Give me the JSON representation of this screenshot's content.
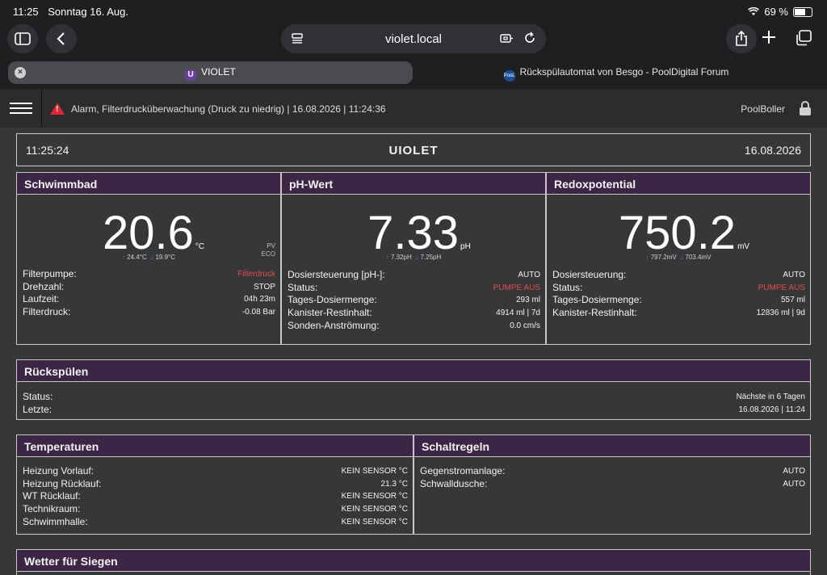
{
  "status_bar": {
    "time": "11:25",
    "date": "Sonntag 16. Aug.",
    "battery": "69 %",
    "battery_level": 0.69
  },
  "browser": {
    "url": "violet.local",
    "tabs": [
      {
        "label": "VIOLET",
        "favicon": "U"
      },
      {
        "label": "Rückspülautomat von Besgo - PoolDigital Forum",
        "favicon": "PooL"
      }
    ]
  },
  "header": {
    "alarm": "Alarm, Filterdrucküberwachung (Druck zu niedrig) | 16.08.2026 | 11:24:36",
    "alarm_symbol": "!",
    "user": "PoolBoller"
  },
  "clock": {
    "time": "11:25:24",
    "logo": "UIOLET",
    "date": "16.08.2026"
  },
  "schwimmbad": {
    "title": "Schwimmbad",
    "value": "20.6",
    "unit": "°C",
    "max": "24.4",
    "max_unit": "°C",
    "min": "19.9",
    "min_unit": "°C",
    "pv": "PV",
    "eco": "ECO",
    "rows": [
      {
        "label": "Filterpumpe:",
        "value": "Filterdruck"
      },
      {
        "label": "Drehzahl:",
        "value": "STOP"
      },
      {
        "label": "Laufzeit:",
        "value": "04h 23m"
      },
      {
        "label": "Filterdruck:",
        "value": "-0.08 Bar"
      }
    ]
  },
  "ph": {
    "title": "pH-Wert",
    "value": "7.33",
    "unit": "pH",
    "max": "7.32",
    "max_unit": "pH",
    "min": "7.25",
    "min_unit": "pH",
    "rows": [
      {
        "label": "Dosiersteuerung [pH-]:",
        "value": "AUTO"
      },
      {
        "label": "Status:",
        "value": "PUMPE AUS"
      },
      {
        "label": "Tages-Dosiermenge:",
        "value": "293 ml"
      },
      {
        "label": "Kanister-Restinhalt:",
        "value": "4914 ml | 7d"
      },
      {
        "label": "Sonden-Anströmung:",
        "value": "0.0 cm/s"
      }
    ]
  },
  "redox": {
    "title": "Redoxpotential",
    "value": "750.2",
    "unit": "mV",
    "max": "797.2",
    "max_unit": "mV",
    "min": "703.4",
    "min_unit": "mV",
    "rows": [
      {
        "label": "Dosiersteuerung:",
        "value": "AUTO"
      },
      {
        "label": "Status:",
        "value": "PUMPE AUS"
      },
      {
        "label": "Tages-Dosiermenge:",
        "value": "557 ml"
      },
      {
        "label": "Kanister-Restinhalt:",
        "value": "12836 ml | 9d"
      }
    ]
  },
  "rueckspuelen": {
    "title": "Rückspülen",
    "rows": [
      {
        "label": "Status:",
        "value": "Nächste in 6 Tagen"
      },
      {
        "label": "Letzte:",
        "value": "16.08.2026 | 11:24"
      }
    ]
  },
  "temperaturen": {
    "title": "Temperaturen",
    "rows": [
      {
        "label": "Heizung Vorlauf:",
        "value": "KEIN SENSOR °C"
      },
      {
        "label": "Heizung Rücklauf:",
        "value": "21.3 °C"
      },
      {
        "label": "WT Rücklauf:",
        "value": "KEIN SENSOR °C"
      },
      {
        "label": "Technikraum:",
        "value": "KEIN SENSOR °C"
      },
      {
        "label": "Schwimmhalle:",
        "value": "KEIN SENSOR °C"
      }
    ]
  },
  "schaltregeln": {
    "title": "Schaltregeln",
    "rows": [
      {
        "label": "Gegenstromanlage:",
        "value": "AUTO"
      },
      {
        "label": "Schwalldusche:",
        "value": "AUTO"
      }
    ]
  },
  "wetter": {
    "title": "Wetter für Siegen"
  },
  "colors": {
    "panel_header": "#3d2545",
    "alert_red": "#e24b4b",
    "min_blue": "#5c8fd8"
  }
}
